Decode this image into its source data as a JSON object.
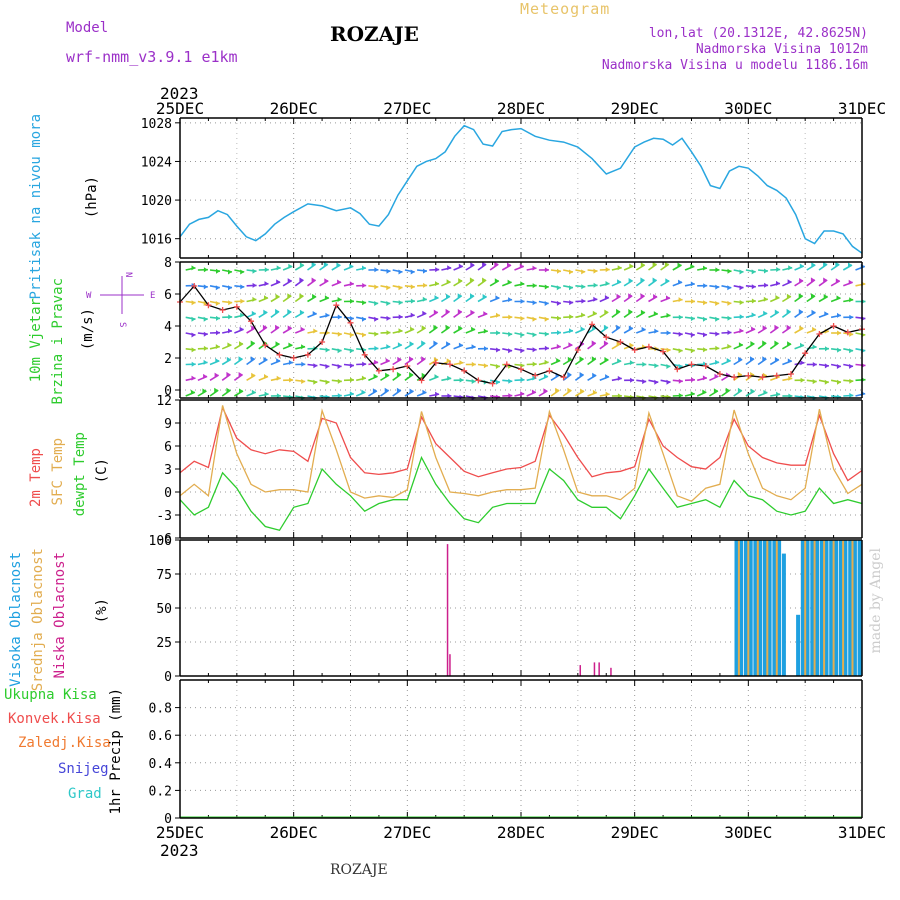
{
  "header": {
    "model_label": "Model",
    "model_name": "wrf-nmm_v3.9.1 e1km",
    "station_title": "ROZAJE",
    "meteogram_label": "Meteogram",
    "info_lines": [
      "lon,lat (20.1312E, 42.8625N)",
      "Nadmorska Visina 1012m",
      "Nadmorska Visina u modelu 1186.16m"
    ]
  },
  "footer": {
    "station": "ROZAJE"
  },
  "watermark": "made by Angel",
  "time_axis": {
    "year": "2023",
    "ticks": [
      "25DEC",
      "26DEC",
      "27DEC",
      "28DEC",
      "29DEC",
      "30DEC",
      "31DEC"
    ]
  },
  "colors": {
    "pressure": "#29a6e0",
    "temp2m": "#ef4d4d",
    "sfc_temp": "#e2ad50",
    "dewpt": "#2ecc2e",
    "high_cloud": "#1ea0e0",
    "mid_cloud": "#e2ad50",
    "low_cloud": "#cc1f8c",
    "total_precip": "#2ecc2e",
    "conv_precip": "#ef4d4d",
    "frozen_precip": "#f07a30",
    "snow": "#4646d8",
    "hail": "#2ec8c8",
    "wind_compass": "#9b30c8"
  },
  "panels": {
    "pressure": {
      "labels": [
        "Pritisak na nivou mora",
        "(hPa)"
      ]
    },
    "wind": {
      "labels": [
        "10m Vjetar",
        "Brzina i Pravac",
        "(m/s)"
      ],
      "compass": [
        "N",
        "W",
        "E",
        "S"
      ]
    },
    "temperature": {
      "labels": [
        "2m Temp",
        "SFC Temp",
        "dewpt Temp",
        "(C)"
      ]
    },
    "cloud": {
      "labels": [
        "Visoka Oblacnost",
        "Srednja Oblacnost",
        "Niska Oblacnost",
        "(%)"
      ]
    },
    "precip": {
      "legend": [
        "Ukupna Kisa",
        "Konvek.Kisa",
        "Zaledj.Kisa",
        "Snijeg",
        "Grad"
      ],
      "ylabel": "1hr Precip (mm)"
    }
  },
  "chart_data": [
    {
      "type": "line",
      "panel": "pressure",
      "ylabel": "(hPa)",
      "ylim": [
        1014,
        1028.5
      ],
      "yticks": [
        1016,
        1020,
        1024,
        1028
      ],
      "grid": true,
      "x_hours": [
        0,
        2,
        4,
        6,
        8,
        10,
        12,
        14,
        16,
        18,
        20,
        22,
        24,
        27,
        30,
        33,
        36,
        38,
        40,
        42,
        44,
        46,
        48,
        50,
        52,
        54,
        56,
        58,
        60,
        62,
        64,
        66,
        68,
        70,
        72,
        75,
        78,
        81,
        84,
        87,
        90,
        93,
        96,
        98,
        100,
        102,
        104,
        106,
        108,
        110,
        112,
        114,
        116,
        118,
        120,
        122,
        124,
        126,
        128,
        130,
        132,
        134,
        136,
        138,
        140,
        142,
        144
      ],
      "series": [
        {
          "values": [
            1016.2,
            1017.5,
            1018,
            1018.2,
            1018.9,
            1018.5,
            1017.3,
            1016.2,
            1015.8,
            1016.5,
            1017.5,
            1018.2,
            1018.8,
            1019.6,
            1019.4,
            1018.9,
            1019.2,
            1018.6,
            1017.5,
            1017.3,
            1018.5,
            1020.5,
            1022,
            1023.5,
            1024,
            1024.3,
            1025,
            1026.6,
            1027.7,
            1027.3,
            1025.8,
            1025.6,
            1027.1,
            1027.3,
            1027.4,
            1026.6,
            1026.2,
            1026,
            1025.5,
            1024.3,
            1022.7,
            1023.3,
            1025.5,
            1026,
            1026.4,
            1026.3,
            1025.7,
            1026.4,
            1025,
            1023.5,
            1021.5,
            1021.2,
            1023,
            1023.5,
            1023.3,
            1022.5,
            1021.5,
            1021,
            1020.2,
            1018.5,
            1016,
            1015.5,
            1016.8,
            1016.8,
            1016.5,
            1015.2,
            1014.5
          ]
        }
      ]
    },
    {
      "type": "line",
      "panel": "wind",
      "ylabel": "(m/s)",
      "ylim": [
        -0.5,
        8
      ],
      "yticks": [
        0,
        2,
        4,
        6,
        8
      ],
      "grid": true,
      "x_hours": [
        0,
        3,
        6,
        9,
        12,
        15,
        18,
        21,
        24,
        27,
        30,
        33,
        36,
        39,
        42,
        45,
        48,
        51,
        54,
        57,
        60,
        63,
        66,
        69,
        72,
        75,
        78,
        81,
        84,
        87,
        90,
        93,
        96,
        99,
        102,
        105,
        108,
        111,
        114,
        117,
        120,
        123,
        126,
        129,
        132,
        135,
        138,
        141,
        144
      ],
      "series": [
        {
          "name": "10m Vjetar",
          "values": [
            5.5,
            6.5,
            5.3,
            5.0,
            5.2,
            4.3,
            2.8,
            2.2,
            2.0,
            2.2,
            3.0,
            5.3,
            4.2,
            2.2,
            1.2,
            1.3,
            1.5,
            0.6,
            1.7,
            1.6,
            1.2,
            0.6,
            0.4,
            1.6,
            1.3,
            0.9,
            1.2,
            0.8,
            2.5,
            4.1,
            3.3,
            3.0,
            2.5,
            2.7,
            2.4,
            1.3,
            1.6,
            1.5,
            1.0,
            0.8,
            0.9,
            0.8,
            0.9,
            1.0,
            2.3,
            3.5,
            4.0,
            3.6,
            3.8
          ]
        }
      ]
    },
    {
      "type": "line",
      "panel": "temperature",
      "ylabel": "(C)",
      "ylim": [
        -6,
        12
      ],
      "yticks": [
        -6,
        -3,
        0,
        3,
        6,
        9,
        12
      ],
      "grid": true,
      "x_hours": [
        0,
        3,
        6,
        9,
        12,
        15,
        18,
        21,
        24,
        27,
        30,
        33,
        36,
        39,
        42,
        45,
        48,
        51,
        54,
        57,
        60,
        63,
        66,
        69,
        72,
        75,
        78,
        81,
        84,
        87,
        90,
        93,
        96,
        99,
        102,
        105,
        108,
        111,
        114,
        117,
        120,
        123,
        126,
        129,
        132,
        135,
        138,
        141,
        144
      ],
      "series": [
        {
          "name": "2m Temp",
          "values": [
            2.5,
            4.0,
            3.2,
            11.0,
            7.0,
            5.5,
            5.0,
            5.5,
            5.3,
            4.0,
            9.6,
            9.0,
            4.5,
            2.5,
            2.3,
            2.5,
            3.0,
            9.8,
            6.3,
            4.5,
            2.7,
            2.0,
            2.5,
            3.0,
            3.2,
            4.0,
            10.0,
            7.5,
            4.5,
            2.0,
            2.5,
            2.7,
            3.3,
            9.5,
            6.0,
            4.5,
            3.3,
            3.0,
            4.5,
            9.5,
            6.0,
            4.5,
            3.8,
            3.5,
            3.5,
            10.0,
            5.0,
            1.5,
            2.8
          ]
        },
        {
          "name": "SFC Temp",
          "values": [
            -0.5,
            1.0,
            -0.5,
            11.3,
            5.0,
            1.0,
            0.0,
            0.3,
            0.3,
            0.0,
            10.6,
            5.5,
            0.0,
            -0.8,
            -0.5,
            -0.7,
            0.3,
            10.5,
            4.5,
            0.0,
            -0.2,
            -0.5,
            0.0,
            0.3,
            0.3,
            0.5,
            10.5,
            5.5,
            0.0,
            -0.5,
            -0.5,
            -1.0,
            0.5,
            10.3,
            5.0,
            -0.5,
            -1.2,
            0.5,
            1.0,
            10.7,
            5.0,
            0.5,
            -0.5,
            -1.0,
            0.5,
            10.8,
            3.0,
            -0.2,
            1.0
          ]
        },
        {
          "name": "dewpt Temp",
          "values": [
            -1.0,
            -3.0,
            -2.0,
            2.5,
            0.5,
            -2.5,
            -4.5,
            -5.0,
            -2.0,
            -1.5,
            3.0,
            1.0,
            -0.5,
            -2.5,
            -1.5,
            -1.0,
            -1.0,
            4.5,
            1.0,
            -1.5,
            -3.5,
            -4.0,
            -2.0,
            -1.5,
            -1.5,
            -1.5,
            3.0,
            1.5,
            -1.0,
            -2.0,
            -2.0,
            -3.5,
            -0.5,
            3.0,
            0.5,
            -2.0,
            -1.5,
            -1.0,
            -2.0,
            1.5,
            -0.5,
            -1.0,
            -2.5,
            -3.0,
            -2.5,
            0.5,
            -1.5,
            -1.0,
            -1.5
          ]
        }
      ]
    },
    {
      "type": "bar",
      "panel": "cloud",
      "ylabel": "(%)",
      "ylim": [
        0,
        100
      ],
      "yticks": [
        0,
        25,
        50,
        75,
        100
      ],
      "grid": true,
      "series": [
        {
          "name": "Niska Oblacnost",
          "x_hours": [
            56.5,
            57.0,
            84.5,
            87.5,
            88.5,
            91.0
          ],
          "values": [
            97,
            16,
            8,
            10,
            10,
            6
          ]
        },
        {
          "name": "Visoka Oblacnost",
          "x_hours": [
            117.5,
            118.5,
            119.5,
            120.5,
            121.5,
            122.5,
            123.5,
            124.5,
            125.5,
            126.5,
            127.5,
            129.5,
            130.5,
            131.5,
            132.5,
            133.5,
            134.5,
            135.5,
            136.5,
            137.5,
            138.5,
            139.5,
            140.5,
            141.5,
            142.5,
            143.5
          ],
          "values": [
            100,
            100,
            100,
            100,
            100,
            100,
            100,
            100,
            100,
            100,
            90,
            0,
            45,
            100,
            100,
            100,
            100,
            100,
            100,
            100,
            100,
            100,
            100,
            100,
            100,
            100
          ]
        },
        {
          "name": "Srednja Oblacnost",
          "x_hours": [
            118.0,
            120.0,
            122.0,
            124.0,
            126.0,
            132.0,
            134.0,
            136.0,
            138.0,
            140.0,
            142.0
          ],
          "values": [
            100,
            100,
            100,
            100,
            100,
            100,
            100,
            100,
            100,
            100,
            100
          ]
        }
      ]
    },
    {
      "type": "line",
      "panel": "precip",
      "ylabel": "1hr Precip (mm)",
      "ylim": [
        0,
        1
      ],
      "yticks": [
        0,
        0.2,
        0.4,
        0.6,
        0.8
      ],
      "grid": true,
      "series": [
        {
          "name": "Ukupna Kisa",
          "values": [
            0,
            0
          ]
        }
      ]
    }
  ]
}
